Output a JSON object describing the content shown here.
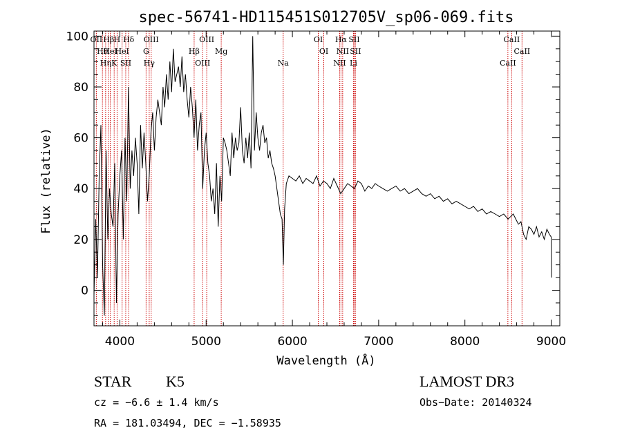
{
  "chart_data": {
    "type": "line",
    "title": "spec-56741-HD115451S012705V_sp06-069.fits",
    "xlabel": "Wavelength (Å)",
    "ylabel": "Flux (relative)",
    "xlim": [
      3700,
      9100
    ],
    "ylim": [
      -14,
      102
    ],
    "x_ticks": [
      4000,
      5000,
      6000,
      7000,
      8000,
      9000
    ],
    "y_ticks": [
      0,
      20,
      40,
      60,
      80,
      100
    ],
    "grid": false,
    "line_color": "#000000",
    "marker_color": "#cc0000",
    "series": [
      {
        "x": [
          3700,
          3720,
          3740,
          3760,
          3780,
          3800,
          3820,
          3840,
          3860,
          3880,
          3900,
          3920,
          3940,
          3960,
          3980,
          4000,
          4020,
          4040,
          4060,
          4080,
          4100,
          4120,
          4140,
          4160,
          4180,
          4200,
          4220,
          4240,
          4260,
          4280,
          4300,
          4320,
          4340,
          4360,
          4380,
          4400,
          4420,
          4440,
          4460,
          4480,
          4500,
          4520,
          4540,
          4560,
          4580,
          4600,
          4620,
          4640,
          4660,
          4680,
          4700,
          4720,
          4740,
          4760,
          4780,
          4800,
          4820,
          4840,
          4860,
          4880,
          4900,
          4920,
          4940,
          4960,
          4980,
          5000,
          5020,
          5040,
          5060,
          5080,
          5100,
          5120,
          5140,
          5160,
          5180,
          5200,
          5220,
          5240,
          5260,
          5280,
          5300,
          5320,
          5340,
          5360,
          5380,
          5400,
          5420,
          5440,
          5460,
          5480,
          5500,
          5520,
          5540,
          5560,
          5580,
          5600,
          5620,
          5640,
          5660,
          5680,
          5700,
          5720,
          5740,
          5760,
          5780,
          5800,
          5820,
          5840,
          5860,
          5880,
          5895,
          5910,
          5930,
          5960,
          6000,
          6040,
          6080,
          6120,
          6160,
          6200,
          6240,
          6280,
          6320,
          6360,
          6400,
          6440,
          6480,
          6520,
          6560,
          6600,
          6640,
          6680,
          6720,
          6760,
          6800,
          6840,
          6880,
          6920,
          6960,
          7000,
          7050,
          7100,
          7150,
          7200,
          7250,
          7300,
          7350,
          7400,
          7450,
          7500,
          7550,
          7600,
          7650,
          7700,
          7750,
          7800,
          7850,
          7900,
          7950,
          8000,
          8050,
          8100,
          8150,
          8200,
          8250,
          8300,
          8350,
          8400,
          8450,
          8500,
          8530,
          8560,
          8590,
          8620,
          8650,
          8680,
          8710,
          8740,
          8770,
          8800,
          8830,
          8860,
          8890,
          8920,
          8950,
          8980,
          9000,
          9005
        ],
        "y": [
          -2,
          28,
          5,
          45,
          65,
          10,
          -10,
          55,
          20,
          40,
          30,
          25,
          50,
          -5,
          30,
          45,
          55,
          20,
          60,
          35,
          80,
          40,
          55,
          45,
          60,
          50,
          30,
          65,
          48,
          62,
          50,
          35,
          45,
          62,
          70,
          55,
          68,
          75,
          70,
          65,
          80,
          72,
          85,
          75,
          90,
          78,
          95,
          82,
          85,
          88,
          80,
          92,
          78,
          85,
          75,
          68,
          80,
          72,
          60,
          75,
          55,
          65,
          70,
          40,
          55,
          62,
          50,
          45,
          35,
          40,
          30,
          50,
          25,
          45,
          35,
          60,
          58,
          55,
          50,
          45,
          62,
          52,
          60,
          55,
          58,
          72,
          55,
          50,
          60,
          52,
          62,
          48,
          100,
          55,
          70,
          60,
          55,
          62,
          65,
          58,
          60,
          52,
          55,
          50,
          48,
          45,
          40,
          35,
          30,
          28,
          10,
          32,
          42,
          45,
          44,
          43,
          45,
          42,
          44,
          43,
          42,
          45,
          41,
          43,
          42,
          40,
          44,
          41,
          38,
          40,
          42,
          41,
          40,
          43,
          42,
          39,
          41,
          40,
          42,
          41,
          40,
          39,
          40,
          41,
          39,
          40,
          38,
          39,
          40,
          38,
          37,
          38,
          36,
          37,
          35,
          36,
          34,
          35,
          34,
          33,
          32,
          33,
          31,
          32,
          30,
          31,
          30,
          29,
          30,
          28,
          29,
          30,
          28,
          26,
          27,
          22,
          20,
          25,
          24,
          22,
          25,
          21,
          23,
          20,
          24,
          22,
          21,
          5
        ]
      }
    ],
    "emission_lines": [
      {
        "wl": 3727,
        "labels": [
          "OII"
        ]
      },
      {
        "wl": 3798,
        "labels": [
          "Hθ"
        ]
      },
      {
        "wl": 3835,
        "labels": [
          "Hη"
        ]
      },
      {
        "wl": 3870,
        "labels": [
          "Hβ"
        ]
      },
      {
        "wl": 3889,
        "labels": [
          "HeI"
        ]
      },
      {
        "wl": 3934,
        "labels": [
          "K"
        ]
      },
      {
        "wl": 3968,
        "labels": [
          "H"
        ]
      },
      {
        "wl": 4026,
        "labels": [
          "HeI"
        ]
      },
      {
        "wl": 4068,
        "labels": [
          "SII"
        ]
      },
      {
        "wl": 4102,
        "labels": [
          "Hδ"
        ]
      },
      {
        "wl": 4304,
        "labels": [
          "G"
        ]
      },
      {
        "wl": 4340,
        "labels": [
          "Hγ"
        ]
      },
      {
        "wl": 4363,
        "labels": [
          "OIII"
        ]
      },
      {
        "wl": 4861,
        "labels": [
          "Hβ"
        ]
      },
      {
        "wl": 4959,
        "labels": [
          "OIII"
        ]
      },
      {
        "wl": 5007,
        "labels": [
          "OIII"
        ]
      },
      {
        "wl": 5175,
        "labels": [
          "Mg"
        ]
      },
      {
        "wl": 5893,
        "labels": [
          "Na"
        ]
      },
      {
        "wl": 6300,
        "labels": [
          "OI"
        ]
      },
      {
        "wl": 6364,
        "labels": [
          "OI"
        ]
      },
      {
        "wl": 6548,
        "labels": [
          "NII"
        ]
      },
      {
        "wl": 6563,
        "labels": [
          "Hα"
        ]
      },
      {
        "wl": 6583,
        "labels": [
          "NII"
        ]
      },
      {
        "wl": 6708,
        "labels": [
          "Li"
        ]
      },
      {
        "wl": 6716,
        "labels": [
          "SII"
        ]
      },
      {
        "wl": 6731,
        "labels": [
          "SII"
        ]
      },
      {
        "wl": 8498,
        "labels": [
          "CaII"
        ]
      },
      {
        "wl": 8542,
        "labels": [
          "CaII"
        ]
      },
      {
        "wl": 8662,
        "labels": [
          "CaII"
        ]
      }
    ]
  },
  "info": {
    "object_class": "STAR",
    "subclass": "K5",
    "survey": "LAMOST DR3",
    "redshift": "cz = −6.6 ± 1.4 km/s",
    "obs_date": "Obs−Date: 20140324",
    "coordinates": "RA = 181.03494, DEC =  −1.58935"
  }
}
